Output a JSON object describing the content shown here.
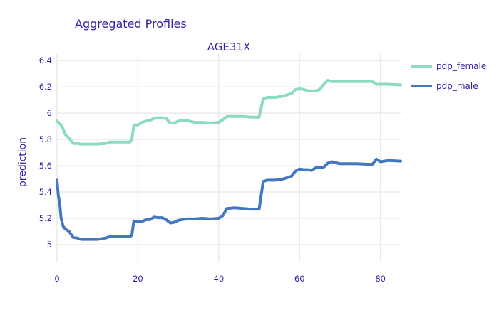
{
  "chart_data": {
    "type": "line",
    "title": "Aggregated Profiles",
    "subplot_title": "AGE31X",
    "xlabel": "",
    "ylabel": "prediction",
    "xlim": [
      0,
      85
    ],
    "ylim": [
      4.87,
      6.45
    ],
    "xticks": [
      0,
      20,
      40,
      60,
      80
    ],
    "xtick_labels": [
      "0",
      "20",
      "40",
      "60",
      "80"
    ],
    "yticks": [
      5,
      5.2,
      5.4,
      5.6,
      5.8,
      6,
      6.2,
      6.4
    ],
    "ytick_labels": [
      "5",
      "5.2",
      "5.4",
      "5.6",
      "5.8",
      "6",
      "6.2",
      "6.4"
    ],
    "grid": true,
    "legend_position": "top-right",
    "series": [
      {
        "name": "pdp_female",
        "color": "#8bdcbe",
        "x": [
          0,
          1,
          1.5,
          2,
          3,
          4,
          5,
          6,
          8,
          10,
          12,
          13,
          14,
          16,
          18,
          18.5,
          19,
          20,
          21,
          22,
          23,
          24,
          25,
          26,
          27,
          28,
          29,
          30,
          32,
          34,
          36,
          38,
          40,
          41,
          42,
          44,
          46,
          48,
          50,
          51,
          52,
          54,
          56,
          58,
          59,
          60,
          61,
          62,
          64,
          65,
          66,
          67,
          68,
          70,
          74,
          78,
          79,
          80,
          82,
          85
        ],
        "y": [
          5.94,
          5.91,
          5.88,
          5.84,
          5.81,
          5.77,
          5.77,
          5.765,
          5.765,
          5.765,
          5.77,
          5.78,
          5.78,
          5.78,
          5.78,
          5.8,
          5.91,
          5.91,
          5.93,
          5.94,
          5.945,
          5.96,
          5.965,
          5.965,
          5.96,
          5.925,
          5.925,
          5.94,
          5.945,
          5.93,
          5.93,
          5.925,
          5.93,
          5.95,
          5.975,
          5.975,
          5.975,
          5.97,
          5.97,
          6.11,
          6.12,
          6.12,
          6.13,
          6.15,
          6.18,
          6.185,
          6.18,
          6.17,
          6.17,
          6.18,
          6.22,
          6.25,
          6.24,
          6.24,
          6.24,
          6.24,
          6.22,
          6.22,
          6.22,
          6.215
        ]
      },
      {
        "name": "pdp_male",
        "color": "#4378bf",
        "x": [
          0,
          0.3,
          0.7,
          1,
          1.5,
          2,
          3,
          4,
          5,
          6,
          8,
          10,
          12,
          13,
          14,
          16,
          18,
          18.5,
          19,
          20,
          21,
          22,
          23,
          24,
          25,
          26,
          27,
          28,
          29,
          30,
          32,
          34,
          36,
          38,
          40,
          41,
          42,
          44,
          46,
          48,
          50,
          51,
          52,
          54,
          56,
          58,
          59,
          60,
          61,
          62,
          63,
          64,
          65,
          66,
          67,
          68,
          70,
          74,
          78,
          79,
          80,
          82,
          85
        ],
        "y": [
          5.49,
          5.38,
          5.3,
          5.2,
          5.14,
          5.12,
          5.1,
          5.055,
          5.05,
          5.04,
          5.04,
          5.04,
          5.05,
          5.06,
          5.06,
          5.06,
          5.06,
          5.07,
          5.18,
          5.175,
          5.175,
          5.19,
          5.19,
          5.21,
          5.205,
          5.205,
          5.19,
          5.165,
          5.17,
          5.185,
          5.195,
          5.195,
          5.2,
          5.195,
          5.2,
          5.22,
          5.275,
          5.28,
          5.275,
          5.27,
          5.27,
          5.48,
          5.49,
          5.49,
          5.5,
          5.52,
          5.56,
          5.575,
          5.57,
          5.57,
          5.565,
          5.585,
          5.585,
          5.59,
          5.62,
          5.63,
          5.615,
          5.615,
          5.61,
          5.65,
          5.63,
          5.64,
          5.635
        ]
      }
    ]
  }
}
